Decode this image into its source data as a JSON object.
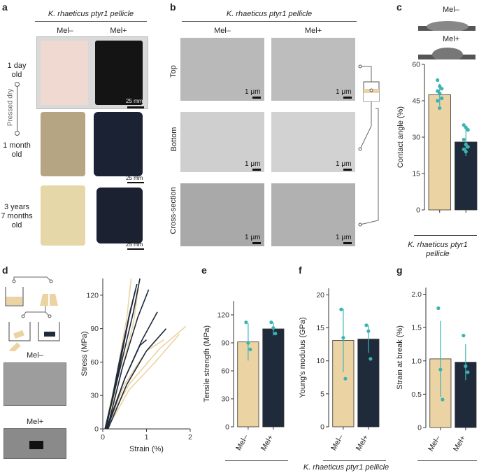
{
  "colors": {
    "mel_minus": "#ecd3a3",
    "mel_plus": "#1f2b3a",
    "dot": "#3bb3b3",
    "err": "#3bb3b3"
  },
  "panels": {
    "a": "a",
    "b": "b",
    "c": "c",
    "d": "d",
    "e": "e",
    "f": "f",
    "g": "g"
  },
  "panel_a": {
    "title": "K. rhaeticus ptyr1 pellicle",
    "col_minus": "Mel–",
    "col_plus": "Mel+",
    "row1": "1 day\nold",
    "row2": "1 month\nold",
    "row3": "3 years\n7 months\nold",
    "pressed": "Pressed dry",
    "scale1": "25 mm",
    "scale2": "25 mm",
    "scale3": "25 mm"
  },
  "panel_b": {
    "title": "K. rhaeticus ptyr1 pellicle",
    "col_minus": "Mel–",
    "col_plus": "Mel+",
    "row_top": "Top",
    "row_bottom": "Bottom",
    "row_cross": "Cross-section",
    "scale": "1 μm"
  },
  "panel_c": {
    "drop_minus": "Mel–",
    "drop_plus": "Mel+",
    "footer": "K. rhaeticus ptyr1\npellicle"
  },
  "panel_d": {
    "mel_minus": "Mel–",
    "mel_plus": "Mel+"
  },
  "footer_efg": "K. rhaeticus ptyr1 pellicle",
  "chart_data": [
    {
      "id": "c",
      "type": "bar",
      "categories": [
        "Mel–",
        "Mel+"
      ],
      "values": [
        47.5,
        28
      ],
      "errors": [
        4.5,
        5.8
      ],
      "points": [
        [
          53.5,
          51,
          50,
          49,
          48,
          46,
          45,
          42
        ],
        [
          35,
          34,
          33,
          29,
          27,
          26,
          25,
          24
        ]
      ],
      "xlabel": "",
      "ylabel": "Contact angle (%)",
      "ylim": [
        0,
        60
      ],
      "yticks": [
        "0",
        "15",
        "30",
        "45",
        "60"
      ]
    },
    {
      "id": "d",
      "type": "line",
      "xlabel": "Strain (%)",
      "ylabel": "Stress (MPa)",
      "xlim": [
        0,
        2
      ],
      "ylim": [
        0,
        135
      ],
      "xticks": [
        "0",
        "1",
        "2"
      ],
      "yticks": [
        "0",
        "30",
        "60",
        "90",
        "120"
      ],
      "series": [
        {
          "group": "Mel–",
          "points": [
            [
              0.05,
              0
            ],
            [
              0.3,
              45
            ],
            [
              0.55,
              100
            ],
            [
              0.65,
              135
            ]
          ]
        },
        {
          "group": "Mel–",
          "points": [
            [
              0.05,
              0
            ],
            [
              0.35,
              40
            ],
            [
              0.7,
              95
            ],
            [
              0.82,
              128
            ]
          ]
        },
        {
          "group": "Mel–",
          "points": [
            [
              0.08,
              0
            ],
            [
              0.5,
              40
            ],
            [
              1.0,
              70
            ],
            [
              1.4,
              80
            ]
          ]
        },
        {
          "group": "Mel–",
          "points": [
            [
              0.05,
              0
            ],
            [
              0.6,
              40
            ],
            [
              1.3,
              72
            ],
            [
              1.9,
              92
            ]
          ]
        },
        {
          "group": "Mel–",
          "points": [
            [
              0.1,
              0
            ],
            [
              0.6,
              35
            ],
            [
              1.2,
              60
            ],
            [
              1.75,
              85
            ]
          ]
        },
        {
          "group": "Mel+",
          "points": [
            [
              0.05,
              0
            ],
            [
              0.35,
              50
            ],
            [
              0.6,
              100
            ],
            [
              0.75,
              125
            ]
          ]
        },
        {
          "group": "Mel+",
          "points": [
            [
              0.08,
              0
            ],
            [
              0.35,
              55
            ],
            [
              0.62,
              105
            ],
            [
              0.78,
              130
            ]
          ]
        },
        {
          "group": "Mel+",
          "points": [
            [
              0.06,
              0
            ],
            [
              0.4,
              55
            ],
            [
              0.7,
              105
            ],
            [
              0.85,
              135
            ]
          ]
        },
        {
          "group": "Mel+",
          "points": [
            [
              0.1,
              0
            ],
            [
              0.45,
              55
            ],
            [
              0.8,
              100
            ],
            [
              1.05,
              125
            ]
          ]
        },
        {
          "group": "Mel+",
          "points": [
            [
              0.1,
              0
            ],
            [
              0.5,
              45
            ],
            [
              0.9,
              80
            ],
            [
              1.25,
              105
            ]
          ]
        },
        {
          "group": "Mel+",
          "points": [
            [
              0.12,
              0
            ],
            [
              0.55,
              40
            ],
            [
              1.0,
              70
            ],
            [
              1.45,
              90
            ]
          ]
        },
        {
          "group": "Mel+",
          "points": [
            [
              0.08,
              0
            ],
            [
              0.5,
              45
            ],
            [
              0.85,
              75
            ],
            [
              1.0,
              80
            ]
          ]
        }
      ]
    },
    {
      "id": "e",
      "type": "bar",
      "categories": [
        "Mel–",
        "Mel+"
      ],
      "values": [
        91,
        105
      ],
      "errors": [
        20,
        7
      ],
      "points": [
        [
          112,
          90,
          83
        ],
        [
          112,
          106,
          100
        ]
      ],
      "xlabel": "",
      "ylabel": "Tensile strength (MPa)",
      "ylim": [
        0,
        135
      ],
      "yticks": [
        "0",
        "30",
        "60",
        "90",
        "120"
      ]
    },
    {
      "id": "f",
      "type": "bar",
      "categories": [
        "Mel–",
        "Mel+"
      ],
      "values": [
        13.1,
        13.3
      ],
      "errors": [
        4.8,
        2.1
      ],
      "points": [
        [
          17.8,
          13.5,
          7.3
        ],
        [
          15.4,
          14.5,
          10.3
        ]
      ],
      "xlabel": "",
      "ylabel": "Young's modulus (GPa)",
      "ylim": [
        0,
        21
      ],
      "yticks": [
        "0",
        "5",
        "10",
        "15",
        "20"
      ]
    },
    {
      "id": "g",
      "type": "bar",
      "categories": [
        "Mel–",
        "Mel+"
      ],
      "values": [
        1.03,
        0.98
      ],
      "errors": [
        0.57,
        0.27
      ],
      "points": [
        [
          1.79,
          0.87,
          0.42
        ],
        [
          1.38,
          0.92,
          0.83
        ]
      ],
      "xlabel": "",
      "ylabel": "Strain at break (%)",
      "ylim": [
        0,
        2.1
      ],
      "yticks": [
        "0",
        "0.5",
        "1.0",
        "1.5",
        "2.0"
      ]
    }
  ]
}
